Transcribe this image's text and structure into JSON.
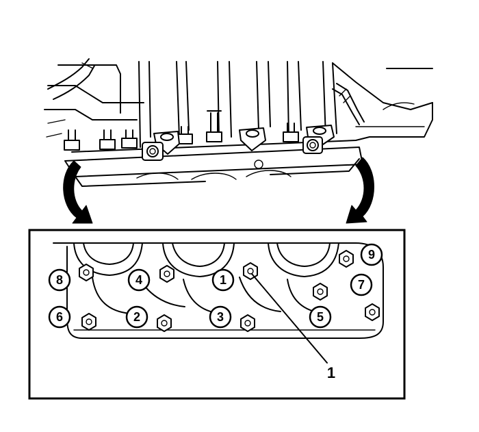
{
  "callouts": [
    {
      "id": "c1",
      "label": "1"
    },
    {
      "id": "c2",
      "label": "2"
    },
    {
      "id": "c3",
      "label": "3"
    },
    {
      "id": "c4",
      "label": "4"
    },
    {
      "id": "c5",
      "label": "5"
    },
    {
      "id": "c6",
      "label": "6"
    },
    {
      "id": "c7",
      "label": "7"
    },
    {
      "id": "c8",
      "label": "8"
    },
    {
      "id": "c9",
      "label": "9"
    }
  ],
  "part_label": "1"
}
